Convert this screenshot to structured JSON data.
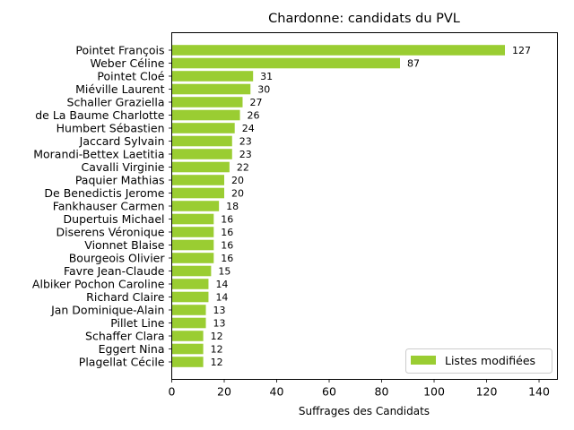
{
  "chart_data": {
    "type": "bar",
    "orientation": "horizontal",
    "title": "Chardonne: candidats du PVL",
    "xlabel": "Suffrages des Candidats",
    "ylabel": "",
    "xlim": [
      0,
      147
    ],
    "xticks": [
      "0",
      "20",
      "40",
      "60",
      "80",
      "100",
      "120",
      "140"
    ],
    "grid": false,
    "legend_position": "lower-right",
    "bar_color": "#9acd32",
    "categories": [
      "Pointet François",
      "Weber Céline",
      "Pointet Cloé",
      "Miéville Laurent",
      "Schaller Graziella",
      "de La Baume Charlotte",
      "Humbert Sébastien",
      "Jaccard Sylvain",
      "Morandi-Bettex Laetitia",
      "Cavalli Virginie",
      "Paquier Mathias",
      "De Benedictis Jerome",
      "Fankhauser Carmen",
      "Dupertuis Michael",
      "Diserens Véronique",
      "Vionnet Blaise",
      "Bourgeois Olivier",
      "Favre Jean-Claude",
      "Albiker Pochon Caroline",
      "Richard Claire",
      "Jan Dominique-Alain",
      "Pillet Line",
      "Schaffer Clara",
      "Eggert Nina",
      "Plagellat Cécile"
    ],
    "series": [
      {
        "name": "Listes modifiées",
        "values": [
          127,
          87,
          31,
          30,
          27,
          26,
          24,
          23,
          23,
          22,
          20,
          20,
          18,
          16,
          16,
          16,
          16,
          15,
          14,
          14,
          13,
          13,
          12,
          12,
          12
        ]
      }
    ]
  }
}
